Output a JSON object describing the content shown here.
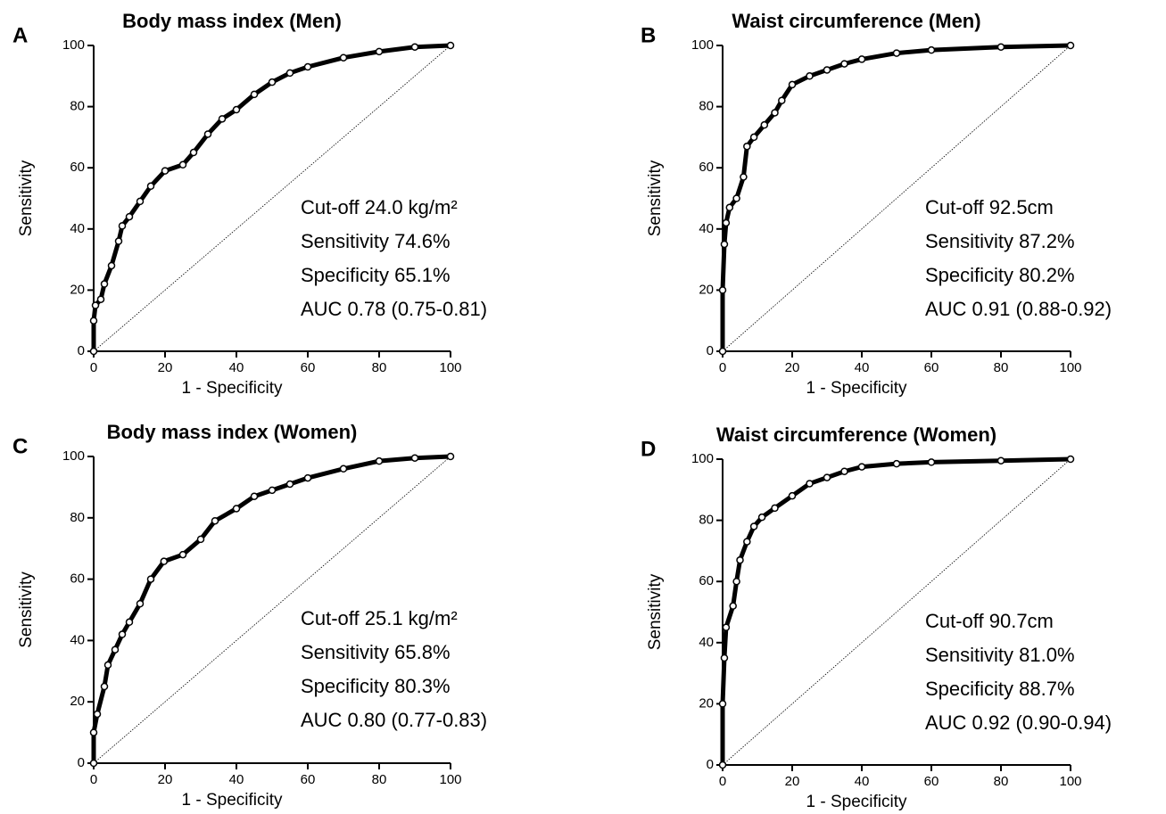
{
  "chart_data": [
    {
      "type": "line",
      "panel_label": "A",
      "title": "Body mass index (Men)",
      "xlabel": "1 - Specificity",
      "ylabel": "Sensitivity",
      "xlim": [
        0,
        100
      ],
      "ylim": [
        0,
        100
      ],
      "xticks": [
        0,
        20,
        40,
        60,
        80,
        100
      ],
      "yticks": [
        0,
        20,
        40,
        60,
        80,
        100
      ],
      "color": "#000000",
      "x": [
        0,
        0,
        0.5,
        2,
        3,
        5,
        7,
        8,
        10,
        13,
        16,
        20,
        25,
        28,
        32,
        36,
        40,
        45,
        50,
        55,
        60,
        70,
        80,
        90,
        100
      ],
      "values": [
        0,
        10,
        15,
        17,
        22,
        28,
        36,
        41,
        44,
        49,
        54,
        59,
        61,
        65,
        71,
        76,
        79,
        84,
        88,
        91,
        93,
        96,
        98,
        99.5,
        100
      ],
      "annotations": [
        "Cut-off 24.0 kg/m²",
        "Sensitivity 74.6%",
        "Specificity 65.1%",
        "AUC 0.78 (0.75-0.81)"
      ]
    },
    {
      "type": "line",
      "panel_label": "B",
      "title": "Waist circumference (Men)",
      "xlabel": "1 - Specificity",
      "ylabel": "Sensitivity",
      "xlim": [
        0,
        100
      ],
      "ylim": [
        0,
        100
      ],
      "xticks": [
        0,
        20,
        40,
        60,
        80,
        100
      ],
      "yticks": [
        0,
        20,
        40,
        60,
        80,
        100
      ],
      "color": "#000000",
      "x": [
        0,
        0,
        0.5,
        1,
        2,
        4,
        6,
        7,
        9,
        12,
        15,
        17,
        20,
        25,
        30,
        35,
        40,
        50,
        60,
        80,
        100
      ],
      "values": [
        0,
        20,
        35,
        42,
        47,
        50,
        57,
        67,
        70,
        74,
        78,
        82,
        87.2,
        90,
        92,
        94,
        95.5,
        97.5,
        98.5,
        99.5,
        100
      ],
      "annotations": [
        "Cut-off 92.5cm",
        "Sensitivity 87.2%",
        "Specificity 80.2%",
        "AUC 0.91 (0.88-0.92)"
      ]
    },
    {
      "type": "line",
      "panel_label": "C",
      "title": "Body mass index (Women)",
      "xlabel": "1 - Specificity",
      "ylabel": "Sensitivity",
      "xlim": [
        0,
        100
      ],
      "ylim": [
        0,
        100
      ],
      "xticks": [
        0,
        20,
        40,
        60,
        80,
        100
      ],
      "yticks": [
        0,
        20,
        40,
        60,
        80,
        100
      ],
      "color": "#000000",
      "x": [
        0,
        0,
        1,
        3,
        4,
        6,
        8,
        10,
        13,
        16,
        19.7,
        25,
        30,
        34,
        40,
        45,
        50,
        55,
        60,
        70,
        80,
        90,
        100
      ],
      "values": [
        0,
        10,
        16,
        25,
        32,
        37,
        42,
        46,
        52,
        60,
        65.8,
        68,
        73,
        79,
        83,
        87,
        89,
        91,
        93,
        96,
        98.5,
        99.5,
        100
      ],
      "annotations": [
        "Cut-off 25.1 kg/m²",
        "Sensitivity 65.8%",
        "Specificity 80.3%",
        "AUC 0.80 (0.77-0.83)"
      ]
    },
    {
      "type": "line",
      "panel_label": "D",
      "title": "Waist circumference (Women)",
      "xlabel": "1 - Specificity",
      "ylabel": "Sensitivity",
      "xlim": [
        0,
        100
      ],
      "ylim": [
        0,
        100
      ],
      "xticks": [
        0,
        20,
        40,
        60,
        80,
        100
      ],
      "yticks": [
        0,
        20,
        40,
        60,
        80,
        100
      ],
      "color": "#000000",
      "x": [
        0,
        0,
        0.5,
        1,
        3,
        4,
        5,
        7,
        9,
        11.3,
        15,
        20,
        25,
        30,
        35,
        40,
        50,
        60,
        80,
        100
      ],
      "values": [
        0,
        20,
        35,
        45,
        52,
        60,
        67,
        73,
        78,
        81,
        84,
        88,
        92,
        94,
        96,
        97.5,
        98.5,
        99,
        99.5,
        100
      ],
      "annotations": [
        "Cut-off 90.7cm",
        "Sensitivity 81.0%",
        "Specificity 88.7%",
        "AUC 0.92 (0.90-0.94)"
      ]
    }
  ]
}
